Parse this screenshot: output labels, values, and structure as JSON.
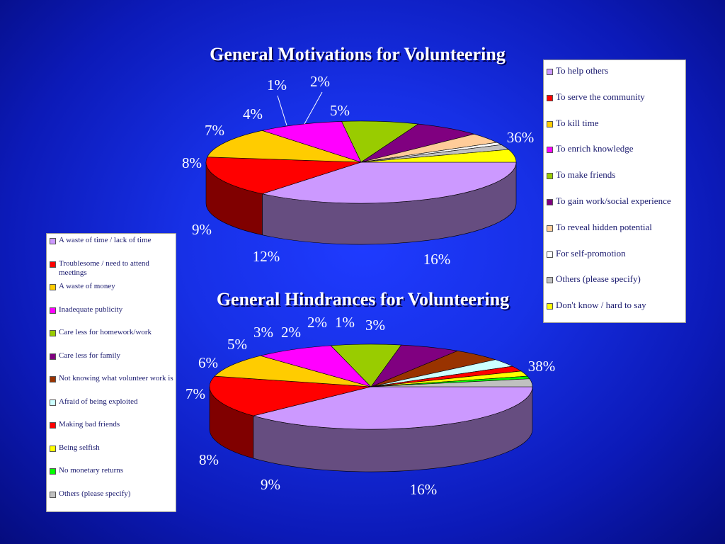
{
  "chart_data": [
    {
      "type": "pie",
      "title": "General Motivations for Volunteering",
      "legend_position": "right",
      "series": [
        {
          "values": [
            {
              "label": "To help others",
              "value": 36,
              "display": "36%",
              "color": "#cc99ff"
            },
            {
              "label": "To serve the community",
              "value": 16,
              "display": "16%",
              "color": "#ff0000"
            },
            {
              "label": "To kill time",
              "value": 12,
              "display": "12%",
              "color": "#ffcc00"
            },
            {
              "label": "To enrich knowledge",
              "value": 9,
              "display": "9%",
              "color": "#ff00ff"
            },
            {
              "label": "To make friends",
              "value": 8,
              "display": "8%",
              "color": "#99cc00"
            },
            {
              "label": "To gain work/social experience",
              "value": 7,
              "display": "7%",
              "color": "#800080"
            },
            {
              "label": "To reveal hidden potential",
              "value": 4,
              "display": "4%",
              "color": "#ffcc99"
            },
            {
              "label": "For self-promotion",
              "value": 1,
              "display": "1%",
              "color": "#ffffff"
            },
            {
              "label": "Others (please specify)",
              "value": 2,
              "display": "2%",
              "color": "#c0c0c0"
            },
            {
              "label": "Don't know / hard to say",
              "value": 5,
              "display": "5%",
              "color": "#ffff00"
            }
          ]
        }
      ]
    },
    {
      "type": "pie",
      "title": "General Hindrances for Volunteering",
      "legend_position": "left",
      "series": [
        {
          "values": [
            {
              "label": "A waste of time / lack of time",
              "value": 38,
              "display": "38%",
              "color": "#cc99ff"
            },
            {
              "label": "Troublesome / need to attend meetings",
              "value": 16,
              "display": "16%",
              "color": "#ff0000"
            },
            {
              "label": "A waste of money",
              "value": 9,
              "display": "9%",
              "color": "#ffcc00"
            },
            {
              "label": "Inadequate publicity",
              "value": 8,
              "display": "8%",
              "color": "#ff00ff"
            },
            {
              "label": "Care less for homework/work",
              "value": 7,
              "display": "7%",
              "color": "#99cc00"
            },
            {
              "label": "Care less for family",
              "value": 6,
              "display": "6%",
              "color": "#800080"
            },
            {
              "label": "Not knowing what volunteer work is",
              "value": 5,
              "display": "5%",
              "color": "#993300"
            },
            {
              "label": "Afraid of being exploited",
              "value": 3,
              "display": "3%",
              "color": "#ccffff"
            },
            {
              "label": "Making bad friends",
              "value": 2,
              "display": "2%",
              "color": "#ff0000"
            },
            {
              "label": "Being selfish",
              "value": 2,
              "display": "2%",
              "color": "#ffff00"
            },
            {
              "label": "No monetary returns",
              "value": 1,
              "display": "1%",
              "color": "#00ff00"
            },
            {
              "label": "Others (please specify)",
              "value": 3,
              "display": "3%",
              "color": "#c0c0c0"
            }
          ]
        }
      ]
    }
  ]
}
